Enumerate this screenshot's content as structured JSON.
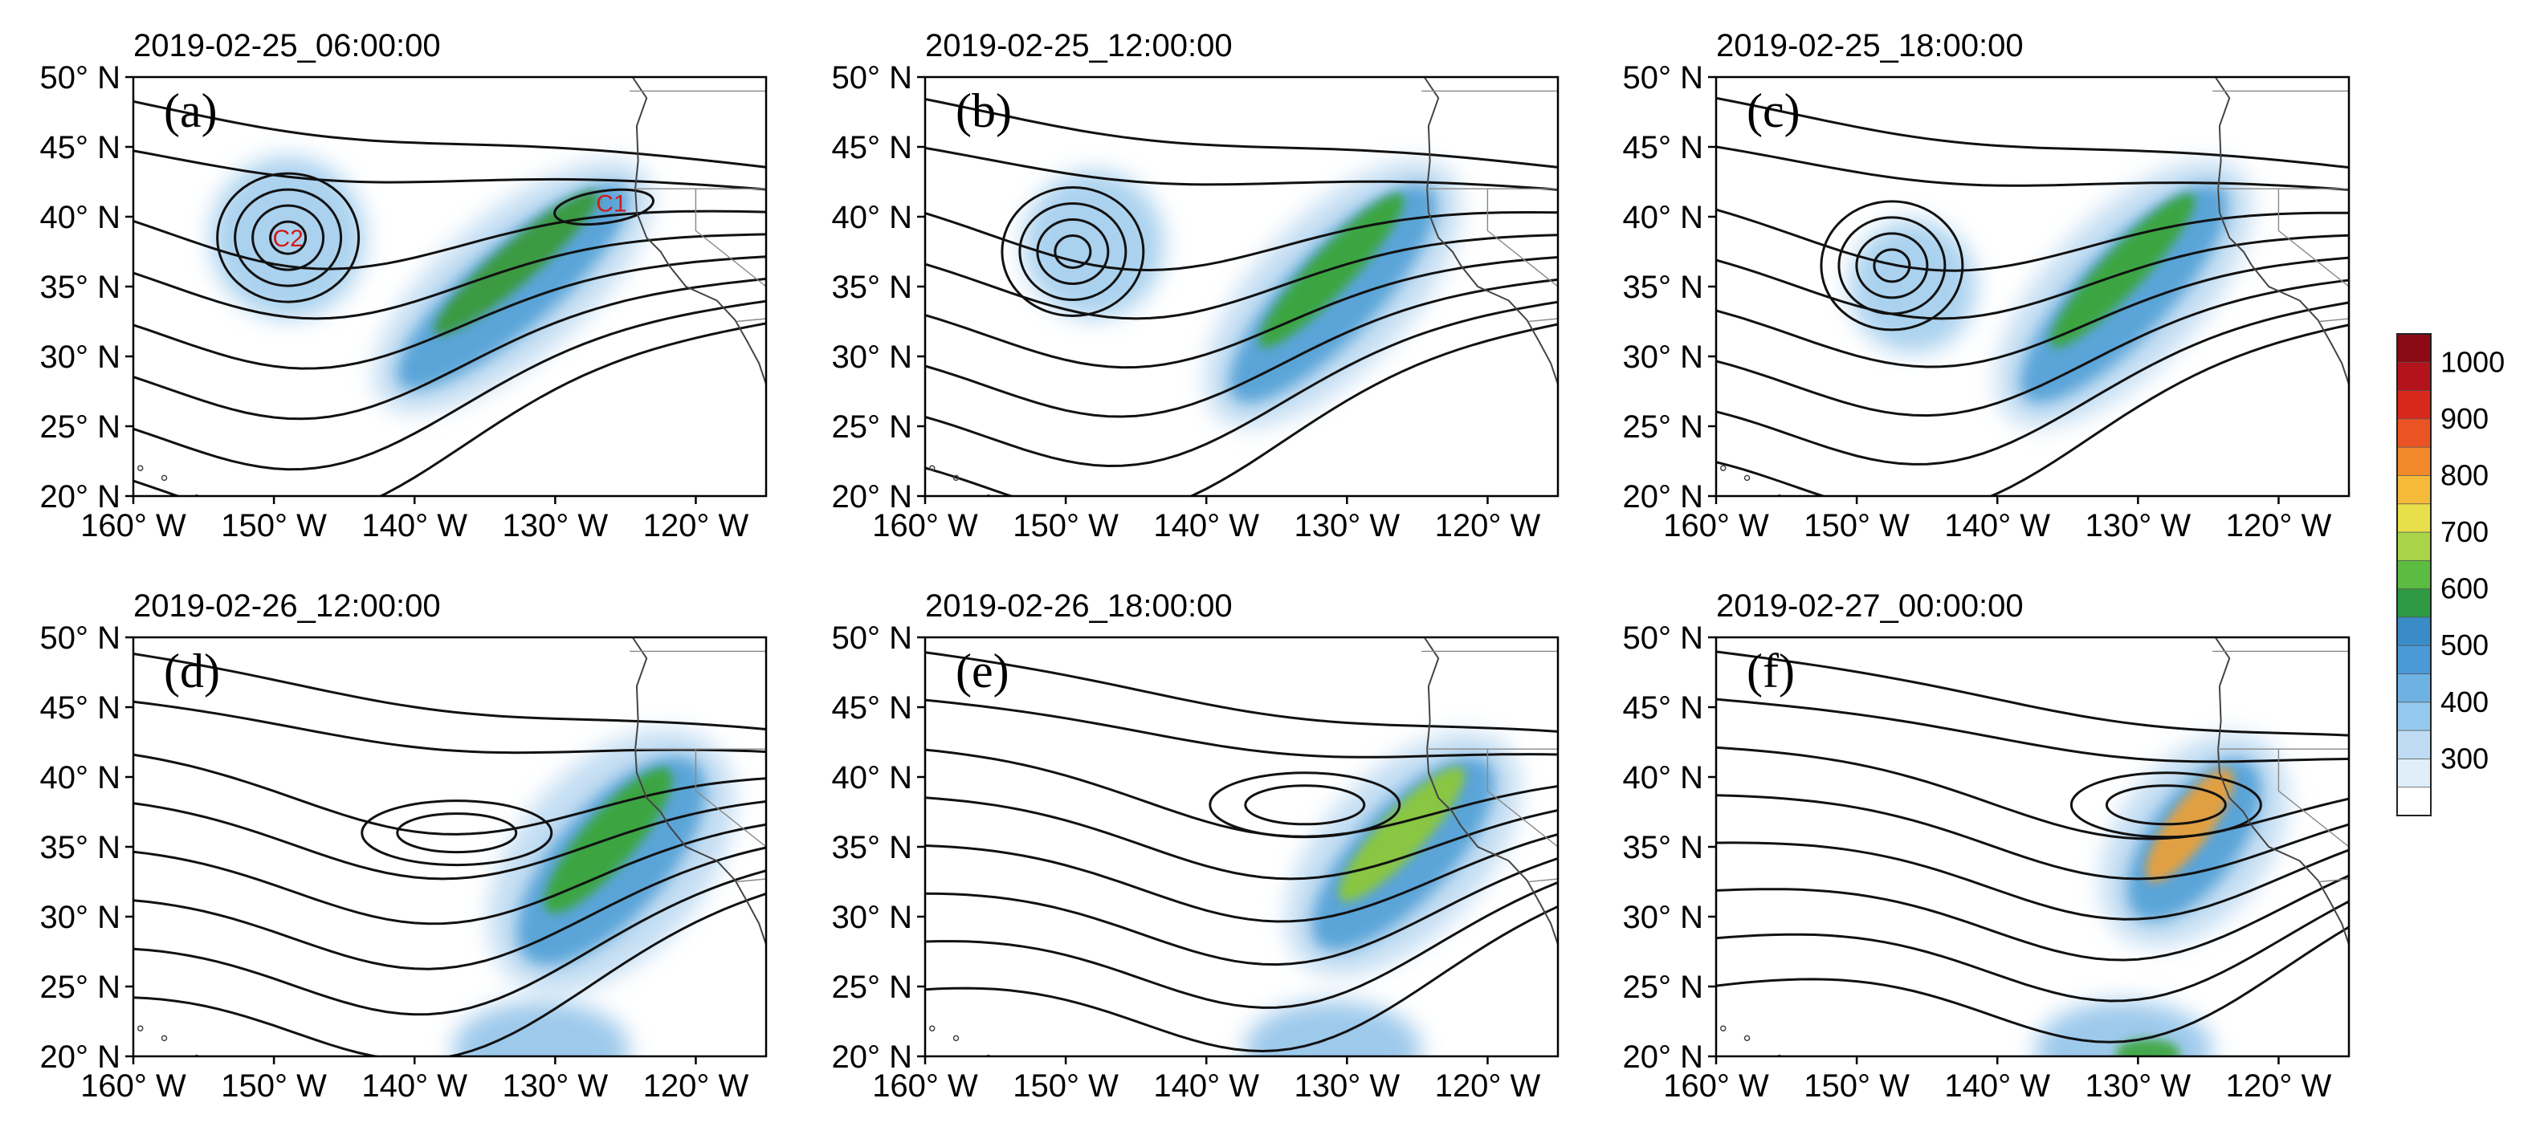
{
  "figure": {
    "x_ticks": [
      "160° W",
      "150° W",
      "140° W",
      "130° W",
      "120° W"
    ],
    "y_ticks": [
      "50° N",
      "45° N",
      "40° N",
      "35° N",
      "30° N",
      "25° N",
      "20° N"
    ],
    "lon_range": [
      -160,
      -115
    ],
    "lat_range": [
      20,
      50
    ],
    "panels": [
      {
        "letter": "(a)",
        "time": "2019-02-25_06:00:00",
        "lows": [
          {
            "lon": -149,
            "lat": 38.5,
            "label": "C2"
          },
          {
            "lon": -126,
            "lat": 41,
            "label": "C1"
          }
        ],
        "band": {
          "start": [
            -141,
            28
          ],
          "end": [
            -125,
            42
          ],
          "width": 3.2,
          "peak": "#3a9a3a"
        },
        "lowBlob": {
          "lon": -149,
          "lat": 38.5,
          "r": 5.5
        },
        "trough": -147
      },
      {
        "letter": "(b)",
        "time": "2019-02-25_12:00:00",
        "lows": [
          {
            "lon": -149.5,
            "lat": 37.5,
            "label": ""
          }
        ],
        "band": {
          "start": [
            -138,
            27
          ],
          "end": [
            -124,
            42
          ],
          "width": 3.4,
          "peak": "#3aa63a"
        },
        "lowBlob": {
          "lon": -148,
          "lat": 38,
          "r": 5
        },
        "trough": -145
      },
      {
        "letter": "(c)",
        "time": "2019-02-25_18:00:00",
        "lows": [
          {
            "lon": -147.5,
            "lat": 36.5,
            "label": ""
          }
        ],
        "band": {
          "start": [
            -138,
            27
          ],
          "end": [
            -124,
            42
          ],
          "width": 3.4,
          "peak": "#3aa63a"
        },
        "lowBlob": {
          "lon": -146,
          "lat": 35,
          "r": 4.5
        },
        "trough": -144
      },
      {
        "letter": "(d)",
        "time": "2019-02-26_12:00:00",
        "lows": [
          {
            "lon": -137,
            "lat": 36,
            "label": ""
          }
        ],
        "band": {
          "start": [
            -132,
            27
          ],
          "end": [
            -120,
            41
          ],
          "width": 4.2,
          "peak": "#3aa63a"
        },
        "lowBlob": null,
        "trough": -138
      },
      {
        "letter": "(e)",
        "time": "2019-02-26_18:00:00",
        "lows": [
          {
            "lon": -133,
            "lat": 38,
            "label": ""
          }
        ],
        "band": {
          "start": [
            -132,
            28
          ],
          "end": [
            -120,
            41
          ],
          "width": 3.6,
          "peak": "#8cc83a"
        },
        "lowBlob": null,
        "trough": -134
      },
      {
        "letter": "(f)",
        "time": "2019-02-27_00:00:00",
        "lows": [
          {
            "lon": -128,
            "lat": 38,
            "label": ""
          }
        ],
        "band": {
          "start": [
            -130,
            30
          ],
          "end": [
            -122,
            41
          ],
          "width": 3.4,
          "peak": "#e8a03a"
        },
        "lowBlob": null,
        "trough": -130
      }
    ],
    "colorbar": {
      "labels": [
        "1000",
        "900",
        "800",
        "700",
        "600",
        "500",
        "400",
        "300"
      ],
      "colors": [
        "#8b0a14",
        "#b3131a",
        "#d8281c",
        "#ea5424",
        "#f28a2c",
        "#f6ba3a",
        "#e8df4a",
        "#aad44a",
        "#5cbc42",
        "#2f9a44",
        "#3a8cc8",
        "#4a9ad8",
        "#6eb2e4",
        "#95c8ee",
        "#bfdcf4",
        "#e0eefa",
        "#ffffff"
      ]
    }
  }
}
